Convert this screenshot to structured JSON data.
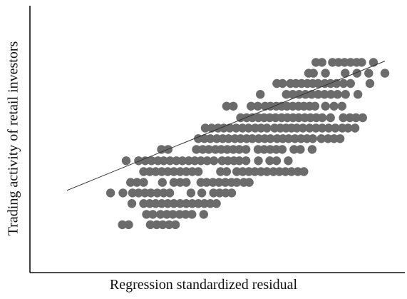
{
  "chart_data": {
    "type": "scatter",
    "title": "",
    "xlabel": "Regression standardized residual",
    "ylabel": "Trading activity of retail investors",
    "xlim": [
      0,
      100
    ],
    "ylim": [
      0,
      100
    ],
    "grid": false,
    "point_color": "#6b6b6b",
    "line_color": "#333333",
    "axis_color": "#111111",
    "fit_line": {
      "x": [
        0,
        100
      ],
      "y": [
        28.3,
        78.5
      ]
    },
    "rows": [
      {
        "y": 78.0,
        "x": [
          78.3,
          80.2,
          83.5,
          85.4,
          87.3,
          89.2,
          91.1,
          92.7,
          96.4
        ]
      },
      {
        "y": 73.8,
        "x": [
          76.0,
          77.5,
          81.3,
          87.5,
          91.2,
          94.9,
          100.0
        ]
      },
      {
        "y": 69.8,
        "x": [
          66.0,
          67.8,
          70.3,
          72.0,
          73.8,
          75.6,
          77.3,
          79.0,
          81.1,
          82.9,
          84.8,
          87.0,
          89.2,
          95.3
        ]
      },
      {
        "y": 65.6,
        "x": [
          60.8,
          69.0,
          71.0,
          73.0,
          75.0,
          77.0,
          79.0,
          81.0,
          83.0,
          85.1,
          87.6,
          91.5
        ]
      },
      {
        "y": 61.0,
        "x": [
          50.2,
          52.3,
          57.9,
          60.0,
          62.3,
          64.0,
          65.8,
          67.5,
          69.2,
          71.0,
          72.8,
          74.5,
          76.3,
          78.0,
          81.3,
          84.0,
          86.5
        ]
      },
      {
        "y": 56.5,
        "x": [
          54.6,
          56.5,
          58.3,
          60.2,
          62.0,
          63.8,
          65.6,
          67.5,
          69.3,
          71.1,
          72.9,
          74.8,
          76.6,
          78.4,
          80.3,
          82.9,
          86.9,
          89.0,
          90.9,
          93.0
        ]
      },
      {
        "y": 52.5,
        "x": [
          43.5,
          45.5,
          47.5,
          49.3,
          51.2,
          53.2,
          55.2,
          57.1,
          59.2,
          61.0,
          62.9,
          65.3,
          67.1,
          68.9,
          70.6,
          72.3,
          74.2,
          76.3,
          78.3,
          80.3,
          82.3,
          84.4,
          86.6,
          88.4,
          90.6
        ]
      },
      {
        "y": 48.4,
        "x": [
          41.3,
          43.2,
          45.1,
          47.1,
          49.0,
          50.8,
          52.8,
          54.6,
          56.5,
          58.3,
          60.3,
          62.2,
          64.0,
          66.1,
          67.9,
          69.7,
          71.7,
          73.6,
          75.5,
          77.3,
          80.0,
          82.1,
          84.0,
          85.9
        ]
      },
      {
        "y": 44.2,
        "x": [
          29.7,
          31.8,
          40.7,
          42.7,
          44.6,
          46.7,
          48.5,
          50.4,
          52.3,
          54.2,
          56.3,
          60.1,
          62.0,
          63.9,
          65.8,
          67.7,
          71.4,
          73.4,
          77.1
        ]
      },
      {
        "y": 39.8,
        "x": [
          18.6,
          22.5,
          24.6,
          26.6,
          28.6,
          30.4,
          32.4,
          34.4,
          36.3,
          38.3,
          40.2,
          42.1,
          44.1,
          46.2,
          48.8,
          50.6,
          52.5,
          54.2,
          56.3,
          60.2,
          63.8,
          65.9,
          69.6
        ]
      },
      {
        "y": 35.6,
        "x": [
          24.1,
          26.0,
          27.9,
          29.8,
          31.7,
          33.6,
          35.6,
          37.5,
          39.4,
          41.3,
          48.3,
          50.2,
          53.4,
          55.3,
          57.2,
          59.1,
          61.0,
          62.9,
          64.9,
          66.8,
          68.7,
          70.6,
          72.6,
          74.5
        ]
      },
      {
        "y": 31.4,
        "x": [
          20.0,
          22.0,
          24.1,
          30.0,
          33.6,
          35.6,
          37.5,
          42.1,
          43.9,
          45.9,
          47.8,
          49.8,
          51.7,
          53.4,
          55.6,
          57.3
        ]
      },
      {
        "y": 27.3,
        "x": [
          13.7,
          17.6,
          20.6,
          22.5,
          24.5,
          26.4,
          28.4,
          30.4,
          32.3,
          39.0,
          42.4,
          46.1,
          48.0,
          49.9,
          51.8
        ]
      },
      {
        "y": 23.2,
        "x": [
          20.4,
          24.1,
          26.0,
          27.9,
          29.8,
          31.7,
          33.6,
          35.6,
          37.5,
          39.4,
          41.3,
          43.2,
          45.1,
          47.0
        ]
      },
      {
        "y": 19.0,
        "x": [
          25.0,
          27.0,
          29.4,
          31.4,
          33.3,
          35.4,
          37.3,
          39.3,
          43.0
        ]
      },
      {
        "y": 15.0,
        "x": [
          17.4,
          19.4,
          26.2,
          28.2,
          30.1,
          32.1,
          34.1
        ]
      }
    ]
  }
}
